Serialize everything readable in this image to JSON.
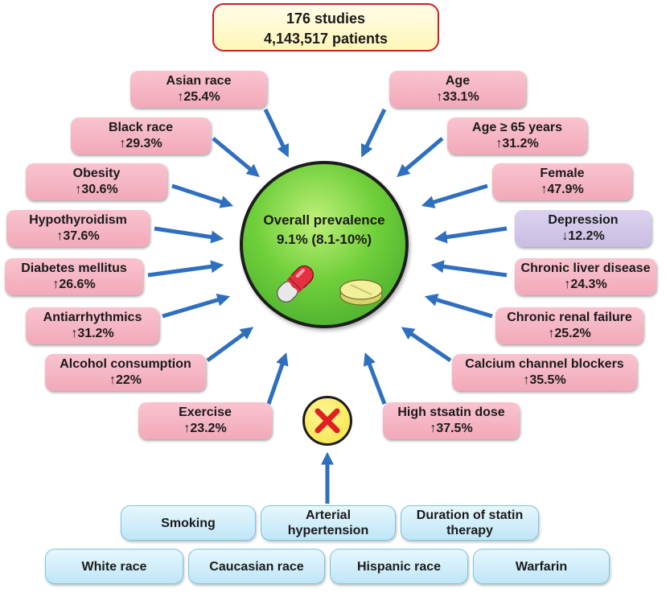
{
  "header": {
    "line1": "176 studies",
    "line2": "4,143,517 patients"
  },
  "center": {
    "title": "Overall prevalence",
    "value": "9.1% (8.1-10%)"
  },
  "factors_left": [
    {
      "name": "Asian race",
      "value": "↑25.4%"
    },
    {
      "name": "Black race",
      "value": "↑29.3%"
    },
    {
      "name": "Obesity",
      "value": "↑30.6%"
    },
    {
      "name": "Hypothyroidism",
      "value": "↑37.6%"
    },
    {
      "name": "Diabetes mellitus",
      "value": "↑26.6%"
    },
    {
      "name": "Antiarrhythmics",
      "value": "↑31.2%"
    },
    {
      "name": "Alcohol consumption",
      "value": "↑22%"
    },
    {
      "name": "Exercise",
      "value": "↑23.2%"
    }
  ],
  "factors_right": [
    {
      "name": "Age",
      "value": "↑33.1%"
    },
    {
      "name": "Age ≥ 65 years",
      "value": "↑31.2%"
    },
    {
      "name": "Female",
      "value": "↑47.9%"
    },
    {
      "name": "Depression",
      "value": "↓12.2%"
    },
    {
      "name": "Chronic liver disease",
      "value": "↑24.3%"
    },
    {
      "name": "Chronic renal failure",
      "value": "↑25.2%"
    },
    {
      "name": "Calcium channel blockers",
      "value": "↑35.5%"
    },
    {
      "name": "High stsatin dose",
      "value": "↑37.5%"
    }
  ],
  "not_associated": {
    "row1": [
      "Smoking",
      "Arterial hypertension",
      "Duration of statin therapy"
    ],
    "row2": [
      "White race",
      "Caucasian race",
      "Hispanic race",
      "Warfarin"
    ]
  },
  "colors": {
    "increase_box": "#f4b3c2",
    "decrease_box": "#cdc3e8",
    "center_circle": "#5cc43a",
    "header_border": "#c8202a",
    "arrow": "#2f6fbf",
    "no_effect_box": "#cdeefb",
    "x_mark": "#e02020"
  }
}
